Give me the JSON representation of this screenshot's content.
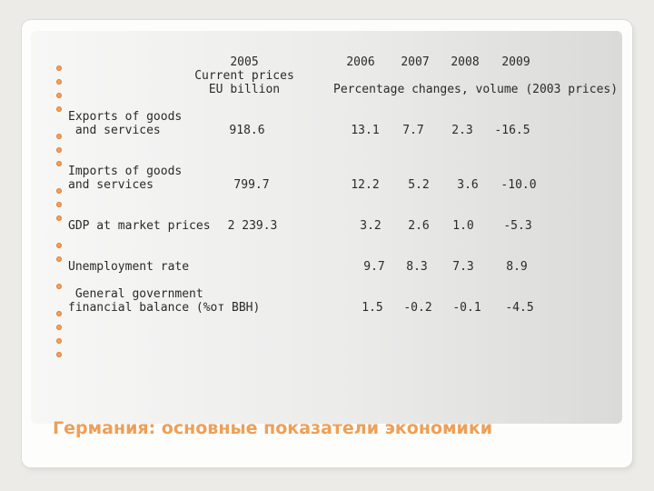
{
  "header": {
    "col_2005_year": "2005",
    "col_2005_line2": "Current prices",
    "col_2005_line3": "EU billion",
    "years": [
      "2006",
      "2007",
      "2008",
      "2009"
    ],
    "pct_note": "Percentage changes, volume (2003 prices)"
  },
  "rows": [
    {
      "label_lines": [
        "Exports of goods",
        " and services"
      ],
      "value_2005": "918.6",
      "changes": [
        "13.1",
        "7.7",
        "2.3",
        "-16.5"
      ]
    },
    {
      "label_lines": [
        "Imports of goods",
        "and services"
      ],
      "value_2005": "799.7",
      "changes": [
        "12.2",
        "5.2",
        "3.6",
        "-10.0"
      ]
    },
    {
      "label_lines": [
        "GDP at market prices"
      ],
      "value_2005": "2 239.3",
      "changes": [
        "3.2",
        "2.6",
        "1.0",
        "-5.3"
      ]
    },
    {
      "label_lines": [
        "Unemployment rate"
      ],
      "value_2005": "",
      "changes": [
        "9.7",
        "8.3",
        "7.3",
        "8.9"
      ]
    },
    {
      "label_lines": [
        " General government",
        "financial balance (%от ВВН)"
      ],
      "value_2005": "",
      "changes": [
        "1.5",
        "-0.2",
        "-0.1",
        "-4.5"
      ]
    }
  ],
  "slide_title": "Германия: основные показатели экономики",
  "colors": {
    "bullet": "#e07a2e",
    "title": "#ef9f56"
  }
}
